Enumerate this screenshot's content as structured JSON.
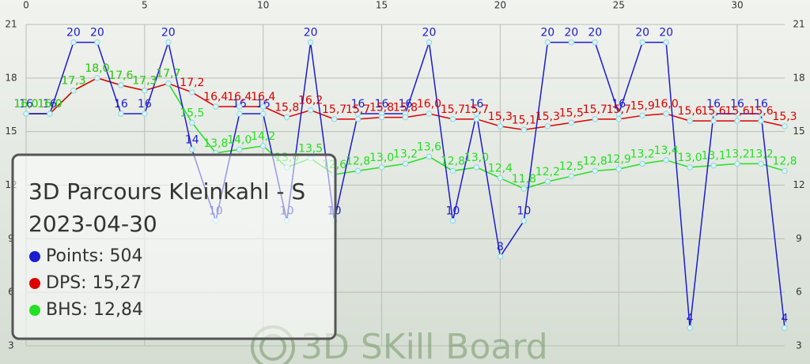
{
  "chart_data": {
    "type": "line",
    "title": "3D Parcours Kleinkahl - S",
    "subtitle": "2023-04-30",
    "watermark": "3D SKill Board",
    "x": [
      0,
      1,
      2,
      3,
      4,
      5,
      6,
      7,
      8,
      9,
      10,
      11,
      12,
      13,
      14,
      15,
      16,
      17,
      18,
      19,
      20,
      21,
      22,
      23,
      24,
      25,
      26,
      27,
      28,
      29,
      30,
      31,
      32
    ],
    "xlim": [
      0,
      32
    ],
    "xticks": [
      0,
      5,
      10,
      15,
      20,
      25,
      30
    ],
    "ylim": [
      3,
      21
    ],
    "yticks": [
      3,
      6,
      9,
      12,
      15,
      18,
      21
    ],
    "grid": true,
    "series": [
      {
        "name": "Points: 504",
        "color": "#1c1cd0",
        "values": [
          16,
          16,
          20,
          20,
          16,
          16,
          20,
          14,
          10,
          16,
          16,
          10,
          20,
          10,
          16,
          16,
          16,
          20,
          10,
          16,
          8,
          10,
          20,
          20,
          20,
          16,
          20,
          20,
          4,
          16,
          16,
          16,
          4
        ]
      },
      {
        "name": "DPS: 15,27",
        "color": "#dd0000",
        "values": [
          16.0,
          16.0,
          17.3,
          18.0,
          17.6,
          17.3,
          17.7,
          17.2,
          16.4,
          16.4,
          16.4,
          15.8,
          16.2,
          15.7,
          15.7,
          15.8,
          15.8,
          16.0,
          15.7,
          15.7,
          15.3,
          15.1,
          15.3,
          15.5,
          15.7,
          15.7,
          15.9,
          16.0,
          15.6,
          15.6,
          15.6,
          15.6,
          15.3
        ],
        "value_labels": [
          "16,0",
          "16,0",
          "17,3",
          "18,0",
          "17,6",
          "17,3",
          "17,7",
          "17,2",
          "16,4",
          "16,4",
          "16,4",
          "15,8",
          "16,2",
          "15,7",
          "15,7",
          "15,8",
          "15,8",
          "16,0",
          "15,7",
          "15,7",
          "15,3",
          "15,1",
          "15,3",
          "15,5",
          "15,7",
          "15,7",
          "15,9",
          "16,0",
          "15,6",
          "15,6",
          "15,6",
          "15,6",
          "15,3"
        ]
      },
      {
        "name": "BHS: 12,84",
        "color": "#22e022",
        "values": [
          16.0,
          16.0,
          17.3,
          18.0,
          17.6,
          17.3,
          17.7,
          15.5,
          13.8,
          14.0,
          14.2,
          13.0,
          13.5,
          12.6,
          12.8,
          13.0,
          13.2,
          13.6,
          12.8,
          13.0,
          12.4,
          11.8,
          12.2,
          12.5,
          12.8,
          12.9,
          13.2,
          13.4,
          13.0,
          13.1,
          13.2,
          13.2,
          12.8
        ],
        "value_labels": [
          "16,0",
          "16,0",
          "17,3",
          "18,0",
          "17,6",
          "17,3",
          "17,7",
          "15,5",
          "13,8",
          "14,0",
          "14,2",
          "13,0",
          "13,5",
          "12,6",
          "12,8",
          "13,0",
          "13,2",
          "13,6",
          "12,8",
          "13,0",
          "12,4",
          "11,8",
          "12,2",
          "12,5",
          "12,8",
          "12,9",
          "13,2",
          "13,4",
          "13,0",
          "13,1",
          "13,2",
          "13,2",
          "12,8"
        ]
      }
    ]
  }
}
